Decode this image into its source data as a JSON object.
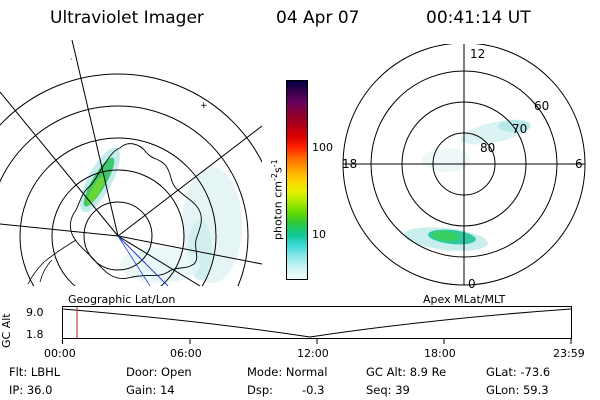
{
  "header": {
    "instrument": "Ultraviolet Imager",
    "date": "04 Apr 07",
    "time": "00:41:14 UT"
  },
  "colorbar": {
    "unit": "photon cm",
    "unit_sup1": "-2",
    "unit_mid": "s",
    "unit_sup2": "-1",
    "ticks": [
      "100",
      "10"
    ],
    "colors": [
      "#000040",
      "#3a0050",
      "#6a0060",
      "#8a0030",
      "#b00018",
      "#d80000",
      "#ff2000",
      "#ff6a00",
      "#ffa000",
      "#ffd000",
      "#e8f000",
      "#a8e800",
      "#60d800",
      "#28c840",
      "#10c898",
      "#40d8d8",
      "#90e8e8",
      "#d0f4f4",
      "#eefafa"
    ]
  },
  "apex_plot": {
    "mlt_top": "12",
    "mlt_left": "18",
    "mlt_right": "6",
    "mlt_bottom": "0",
    "lat_labels": [
      "60",
      "70",
      "80"
    ]
  },
  "timeline": {
    "left_label": "Geographic Lat/Lon",
    "right_label": "Apex MLat/MLT",
    "axis_title": "GC Alt",
    "y_ticks": [
      "9.0",
      "1.8"
    ],
    "x_ticks": [
      "00:00",
      "06:00",
      "12:00",
      "18:00",
      "23:59"
    ]
  },
  "info": {
    "flt": "Flt: LBHL",
    "ip": "IP: 36.0",
    "door": "Door: Open",
    "gain": "Gain: 14",
    "mode": "Mode: Normal",
    "dsp": "Dsp:",
    "dsp_val": "-0.3",
    "gc_alt": "GC Alt: 8.9 Re",
    "seq": "Seq: 39",
    "glat": "GLat: -73.6",
    "glon": "GLon: 59.3"
  }
}
